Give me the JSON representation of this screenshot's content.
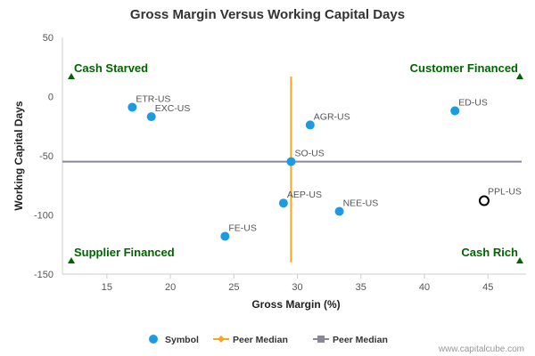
{
  "chart_data": {
    "type": "scatter",
    "title": "Gross Margin Versus Working Capital Days",
    "xlabel": "Gross Margin (%)",
    "ylabel": "Working Capital Days",
    "xlim": [
      11.5,
      48
    ],
    "ylim": [
      -150,
      50
    ],
    "x_ticks": [
      15,
      20,
      25,
      30,
      35,
      40,
      45
    ],
    "y_ticks": [
      50,
      0,
      -50,
      -100,
      -150
    ],
    "grid": false,
    "legend_position": "bottom",
    "points": [
      {
        "label": "ETR-US",
        "x": 17.0,
        "y": -9
      },
      {
        "label": "EXC-US",
        "x": 18.5,
        "y": -17
      },
      {
        "label": "AGR-US",
        "x": 31.0,
        "y": -24
      },
      {
        "label": "SO-US",
        "x": 29.5,
        "y": -55
      },
      {
        "label": "AEP-US",
        "x": 28.9,
        "y": -90
      },
      {
        "label": "NEE-US",
        "x": 33.3,
        "y": -97
      },
      {
        "label": "FE-US",
        "x": 24.3,
        "y": -118
      },
      {
        "label": "ED-US",
        "x": 42.4,
        "y": -12
      }
    ],
    "highlight_point": {
      "label": "PPL-US",
      "x": 44.7,
      "y": -88
    },
    "peer_median_x": 29.5,
    "peer_median_y": -55,
    "peer_median_x_range": [
      -140,
      17
    ],
    "quadrants": {
      "top_left": "Cash Starved",
      "top_right": "Customer Financed",
      "bottom_left": "Supplier Financed",
      "bottom_right": "Cash Rich"
    },
    "legend": [
      {
        "label": "Symbol",
        "color": "#1a9be3"
      },
      {
        "label": "Peer Median",
        "color": "#f5a623"
      },
      {
        "label": "Peer Median",
        "color": "#888899"
      }
    ],
    "colors": {
      "points": "#1a9be3",
      "peer_median_x_line": "#f5a623",
      "peer_median_y_line": "#888899",
      "quadrant": "#006400",
      "highlight": "#000000"
    }
  },
  "credit": "www.capitalcube.com"
}
